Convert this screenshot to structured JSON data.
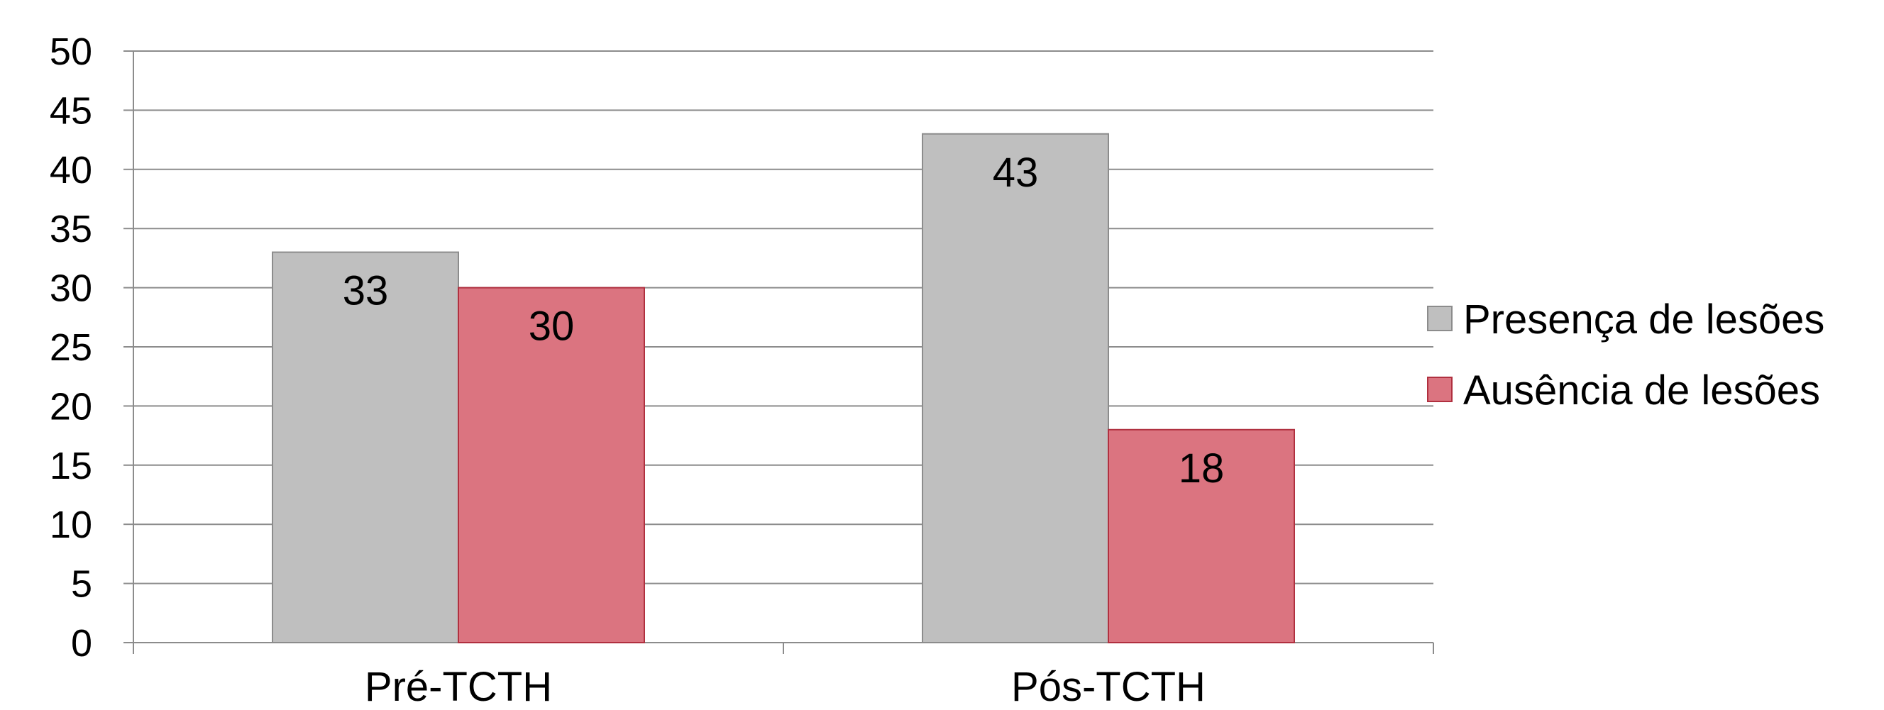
{
  "chart_data": {
    "type": "bar",
    "categories": [
      "Pré-TCTH",
      "Pós-TCTH"
    ],
    "series": [
      {
        "name": "Presença de lesões",
        "values": [
          33,
          43
        ],
        "color": "#bfbfbf",
        "stroke": "#8c8c8c"
      },
      {
        "name": "Ausência de lesões",
        "values": [
          30,
          18
        ],
        "color": "#db7480",
        "stroke": "#b0303f"
      }
    ],
    "title": "",
    "xlabel": "",
    "ylabel": "",
    "ylim": [
      0,
      50
    ],
    "yticks": [
      0,
      5,
      10,
      15,
      20,
      25,
      30,
      35,
      40,
      45,
      50
    ],
    "grid": true,
    "legend_position": "right",
    "data_labels": true
  }
}
